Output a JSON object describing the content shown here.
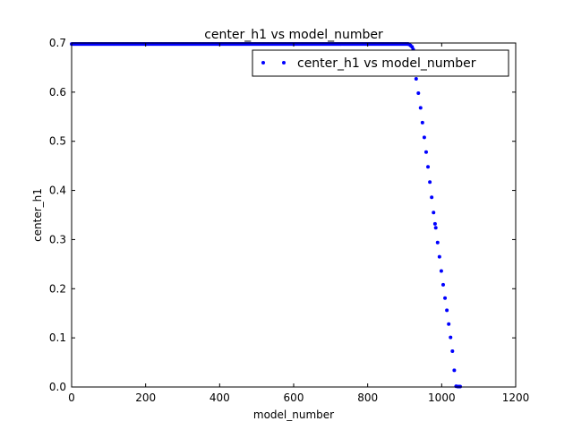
{
  "chart_data": {
    "type": "scatter",
    "title": "center_h1 vs model_number",
    "xlabel": "model_number",
    "ylabel": "center_h1",
    "xlim": [
      0,
      1200
    ],
    "ylim": [
      0.0,
      0.7
    ],
    "xticks": [
      "0",
      "200",
      "400",
      "600",
      "800",
      "1000",
      "1200"
    ],
    "yticks": [
      "0.0",
      "0.1",
      "0.2",
      "0.3",
      "0.4",
      "0.5",
      "0.6",
      "0.7"
    ],
    "grid": false,
    "legend": {
      "position": "top-right",
      "label": "center_h1 vs model_number"
    },
    "series": [
      {
        "name": "center_h1 vs model_number",
        "color": "#0000ff",
        "marker": "dot",
        "flat": {
          "x_start": 0,
          "x_end": 910,
          "x_step": 2,
          "y": 0.698
        },
        "points": [
          [
            912,
            0.697
          ],
          [
            916,
            0.695
          ],
          [
            920,
            0.692
          ],
          [
            923,
            0.687
          ],
          [
            931,
            0.627
          ],
          [
            937,
            0.598
          ],
          [
            943,
            0.568
          ],
          [
            948,
            0.538
          ],
          [
            953,
            0.508
          ],
          [
            958,
            0.478
          ],
          [
            963,
            0.448
          ],
          [
            968,
            0.417
          ],
          [
            973,
            0.386
          ],
          [
            978,
            0.355
          ],
          [
            982,
            0.332
          ],
          [
            984,
            0.324
          ],
          [
            989,
            0.294
          ],
          [
            994,
            0.265
          ],
          [
            999,
            0.236
          ],
          [
            1004,
            0.208
          ],
          [
            1009,
            0.181
          ],
          [
            1014,
            0.156
          ],
          [
            1019,
            0.128
          ],
          [
            1024,
            0.101
          ],
          [
            1029,
            0.073
          ],
          [
            1034,
            0.034
          ],
          [
            1039,
            0.0015
          ],
          [
            1043,
            0.001
          ],
          [
            1047,
            0.0005
          ],
          [
            1050,
            0.0002
          ]
        ]
      }
    ]
  }
}
